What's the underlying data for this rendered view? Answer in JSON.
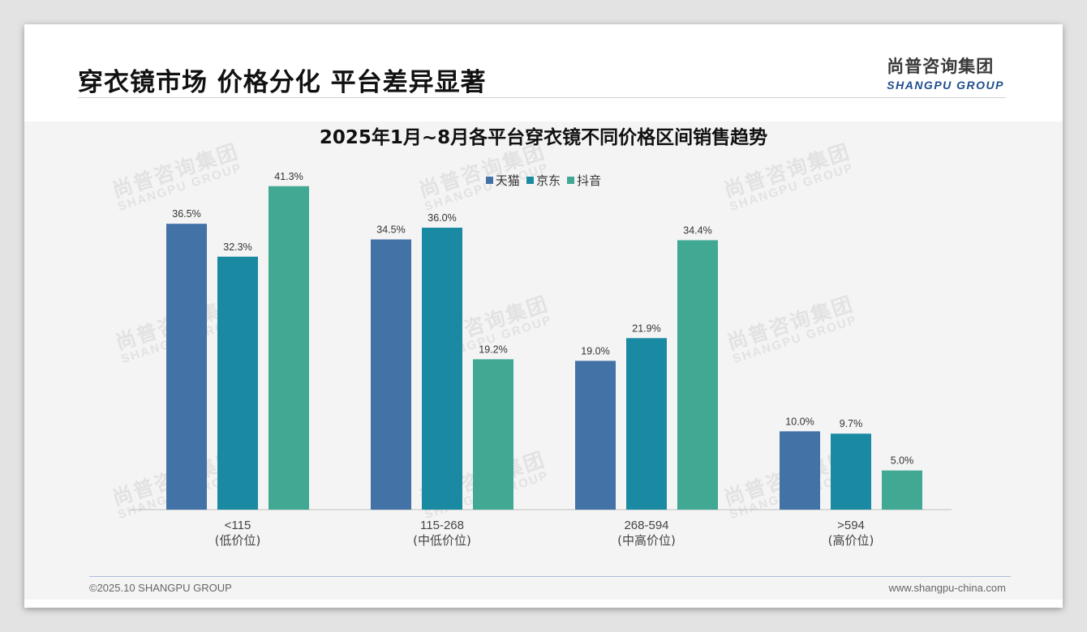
{
  "page": {
    "title": "穿衣镜市场 价格分化 平台差异显著",
    "logo_cn": "尚普咨询集团",
    "logo_en": "SHANGPU GROUP",
    "watermark_cn": "尚普咨询集团",
    "watermark_en": "SHANGPU GROUP",
    "footer_left": "©2025.10 SHANGPU GROUP",
    "footer_right": "www.shangpu-china.com"
  },
  "colors": {
    "tmall": "#4372a7",
    "jd": "#1a8aa2",
    "douyin": "#40a893",
    "title_blue": "#1f4e8c"
  },
  "chart_data": {
    "type": "bar",
    "title": "2025年1月~8月各平台穿衣镜不同价格区间销售趋势",
    "categories": [
      "<115",
      "115-268",
      "268-594",
      ">594"
    ],
    "category_sublabels": [
      "(低价位)",
      "(中低价位)",
      "(中高价位)",
      "(高价位)"
    ],
    "series": [
      {
        "name": "天猫",
        "values": [
          36.5,
          34.5,
          19.0,
          10.0
        ],
        "labels": [
          "36.5%",
          "34.5%",
          "19.0%",
          "10.0%"
        ]
      },
      {
        "name": "京东",
        "values": [
          32.3,
          36.0,
          21.9,
          9.7
        ],
        "labels": [
          "32.3%",
          "36.0%",
          "21.9%",
          "9.7%"
        ]
      },
      {
        "name": "抖音",
        "values": [
          41.3,
          19.2,
          34.4,
          5.0
        ],
        "labels": [
          "41.3%",
          "19.2%",
          "34.4%",
          "5.0%"
        ]
      }
    ],
    "ylim": [
      0,
      45
    ],
    "legend": "top-center",
    "grid": false
  }
}
